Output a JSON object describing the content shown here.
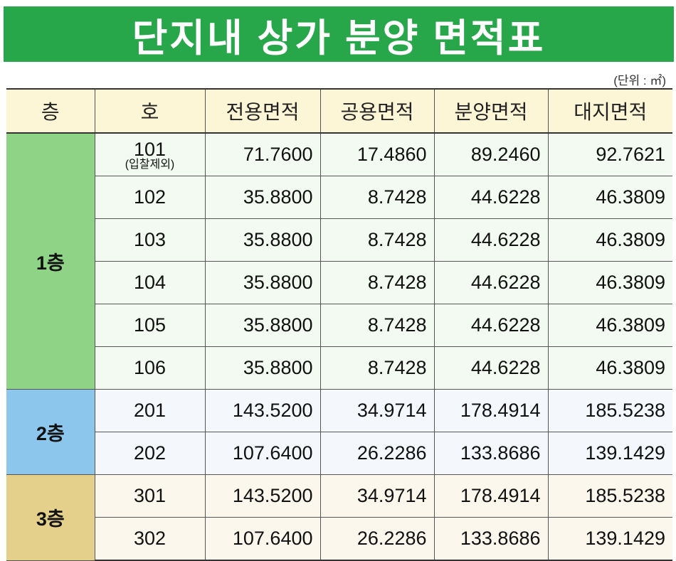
{
  "title": "단지내 상가 분양 면적표",
  "unit_note": "(단위 : ㎡)",
  "headers": [
    "층",
    "호",
    "전용면적",
    "공용면적",
    "분양면적",
    "대지면적"
  ],
  "floors": [
    {
      "label": "1층",
      "color": "#8fd486",
      "rows": [
        {
          "ho": "101",
          "note": "(입찰제외)",
          "exclusive": "71.7600",
          "common": "17.4860",
          "sale": "89.2460",
          "land": "92.7621"
        },
        {
          "ho": "102",
          "exclusive": "35.8800",
          "common": "8.7428",
          "sale": "44.6228",
          "land": "46.3809"
        },
        {
          "ho": "103",
          "exclusive": "35.8800",
          "common": "8.7428",
          "sale": "44.6228",
          "land": "46.3809"
        },
        {
          "ho": "104",
          "exclusive": "35.8800",
          "common": "8.7428",
          "sale": "44.6228",
          "land": "46.3809"
        },
        {
          "ho": "105",
          "exclusive": "35.8800",
          "common": "8.7428",
          "sale": "44.6228",
          "land": "46.3809"
        },
        {
          "ho": "106",
          "exclusive": "35.8800",
          "common": "8.7428",
          "sale": "44.6228",
          "land": "46.3809"
        }
      ]
    },
    {
      "label": "2층",
      "color": "#8cc6ec",
      "rows": [
        {
          "ho": "201",
          "exclusive": "143.5200",
          "common": "34.9714",
          "sale": "178.4914",
          "land": "185.5238"
        },
        {
          "ho": "202",
          "exclusive": "107.6400",
          "common": "26.2286",
          "sale": "133.8686",
          "land": "139.1429"
        }
      ]
    },
    {
      "label": "3층",
      "color": "#e4d08a",
      "rows": [
        {
          "ho": "301",
          "exclusive": "143.5200",
          "common": "34.9714",
          "sale": "178.4914",
          "land": "185.5238"
        },
        {
          "ho": "302",
          "exclusive": "107.6400",
          "common": "26.2286",
          "sale": "133.8686",
          "land": "139.1429"
        }
      ]
    }
  ],
  "banner_color": "#27a64a"
}
